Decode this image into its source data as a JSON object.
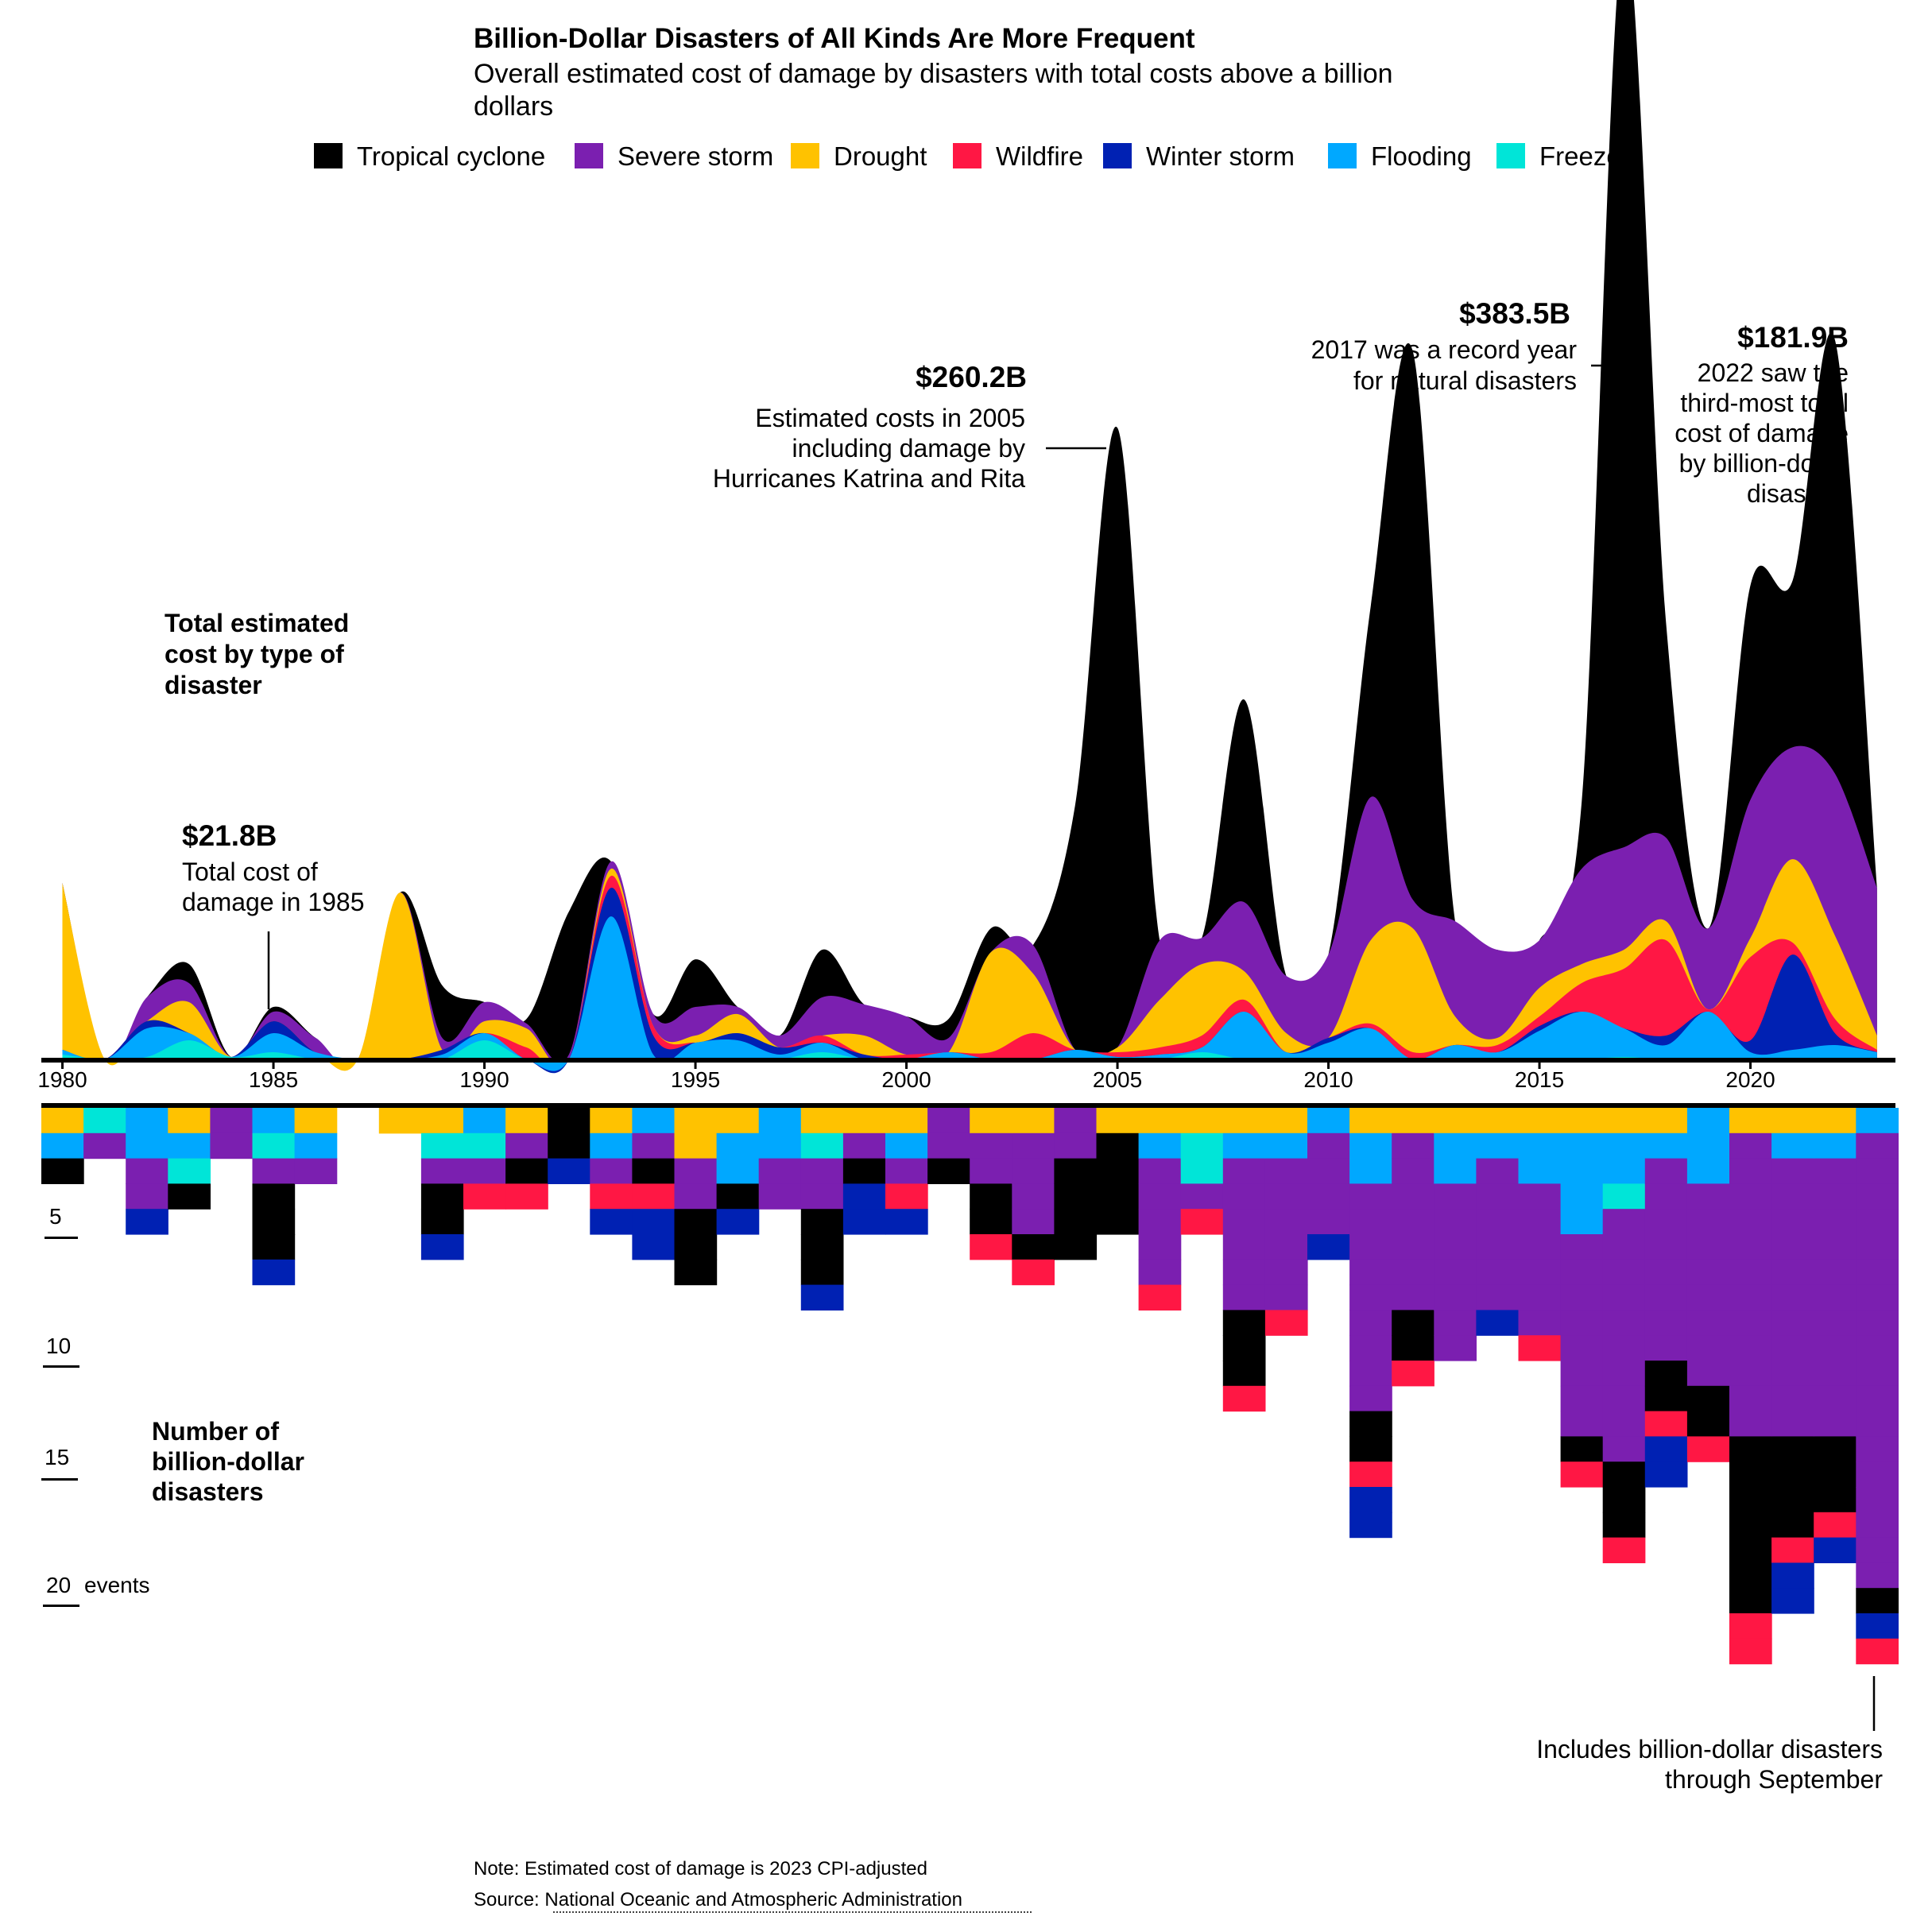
{
  "title": "Billion-Dollar Disasters of All Kinds Are More Frequent",
  "subtitle_line1": "Overall estimated cost of damage by disasters with total costs above a billion",
  "subtitle_line2": "dollars",
  "legend": [
    {
      "name": "Tropical cyclone",
      "color": "#000000"
    },
    {
      "name": "Severe storm",
      "color": "#7b1fb0"
    },
    {
      "name": "Drought",
      "color": "#ffc200"
    },
    {
      "name": "Wildfire",
      "color": "#ff1744"
    },
    {
      "name": "Winter storm",
      "color": "#0021b3"
    },
    {
      "name": "Flooding",
      "color": "#00a8ff"
    },
    {
      "name": "Freeze",
      "color": "#00e5d8"
    }
  ],
  "labels": {
    "cost_l1": "Total estimated",
    "cost_l2": "cost by type of",
    "cost_l3": "disaster",
    "count_l1": "Number of",
    "count_l2": "billion-dollar",
    "count_l3": "disasters"
  },
  "annotations": {
    "a1985_value": "$21.8B",
    "a1985_l1": "Total cost of",
    "a1985_l2": "damage in 1985",
    "a2005_value": "$260.2B",
    "a2005_l1": "Estimated costs in 2005",
    "a2005_l2": "including damage by",
    "a2005_l3": "Hurricanes Katrina and Rita",
    "a2017_value": "$383.5B",
    "a2017_l1": "2017 was a record year",
    "a2017_l2": "for natural disasters",
    "a2022_value": "$181.9B",
    "a2022_l1": "2022 saw the",
    "a2022_l2": "third-most total",
    "a2022_l3": "cost of damage",
    "a2022_l4": "by billion-dollar",
    "a2022_l5": "disasters",
    "a2023_l1": "Includes billion-dollar disasters",
    "a2023_l2": "through September"
  },
  "count_ticks": [
    "5",
    "10",
    "15",
    "20"
  ],
  "count_tick_unit": "events",
  "footer": {
    "note": "Note: Estimated cost of damage is 2023 CPI-adjusted",
    "source_prefix": "Source: ",
    "source_name": "National Oceanic and Atmospheric Administration"
  },
  "chart_data": [
    {
      "type": "area",
      "title": "Total estimated cost by type of disaster",
      "x": [
        1980,
        1981,
        1982,
        1983,
        1984,
        1985,
        1986,
        1987,
        1988,
        1989,
        1990,
        1991,
        1992,
        1993,
        1994,
        1995,
        1996,
        1997,
        1998,
        1999,
        2000,
        2001,
        2002,
        2003,
        2004,
        2005,
        2006,
        2007,
        2008,
        2009,
        2010,
        2011,
        2012,
        2013,
        2014,
        2015,
        2016,
        2017,
        2018,
        2019,
        2020,
        2021,
        2022,
        2023
      ],
      "x_ticks": [
        "1980",
        "1985",
        "1990",
        "1995",
        "2000",
        "2005",
        "2010",
        "2015",
        "2020"
      ],
      "unit": "billion dollars, 2023 CPI-adjusted",
      "series": [
        {
          "name": "Freeze",
          "values": [
            2,
            0,
            1,
            8,
            1,
            3,
            0,
            0,
            0,
            0,
            8,
            0,
            0,
            0,
            0,
            0,
            0,
            0,
            3,
            0,
            0,
            0,
            0,
            0,
            0,
            0,
            0,
            3,
            0,
            0,
            0,
            0,
            0,
            0,
            0,
            0,
            0,
            1,
            0,
            0,
            0,
            0,
            0,
            0
          ]
        },
        {
          "name": "Flooding",
          "values": [
            2,
            0,
            12,
            3,
            0,
            8,
            3,
            0,
            0,
            2,
            3,
            0,
            0,
            60,
            2,
            7,
            8,
            2,
            4,
            0,
            0,
            3,
            0,
            0,
            4,
            1,
            2,
            2,
            20,
            3,
            7,
            13,
            0,
            6,
            3,
            12,
            20,
            12,
            6,
            20,
            3,
            4,
            6,
            3
          ]
        },
        {
          "name": "Winter storm",
          "values": [
            0,
            0,
            3,
            0,
            0,
            5,
            0,
            0,
            0,
            2,
            0,
            0,
            0,
            12,
            8,
            0,
            3,
            3,
            0,
            2,
            0,
            0,
            0,
            0,
            0,
            0,
            0,
            0,
            0,
            0,
            2,
            0,
            0,
            0,
            0,
            2,
            0,
            0,
            4,
            0,
            5,
            40,
            5,
            0
          ]
        },
        {
          "name": "Wildfire",
          "values": [
            0,
            0,
            0,
            0,
            0,
            0,
            0,
            0,
            0,
            0,
            0,
            5,
            0,
            5,
            4,
            0,
            0,
            0,
            3,
            0,
            2,
            0,
            3,
            11,
            0,
            2,
            3,
            5,
            5,
            0,
            0,
            2,
            3,
            0,
            3,
            4,
            12,
            25,
            40,
            1,
            35,
            5,
            6,
            1
          ]
        },
        {
          "name": "Drought",
          "values": [
            70,
            0,
            0,
            13,
            0,
            0,
            0,
            0,
            70,
            0,
            5,
            8,
            0,
            3,
            0,
            3,
            8,
            0,
            0,
            8,
            0,
            0,
            42,
            25,
            0,
            2,
            20,
            30,
            12,
            8,
            0,
            35,
            52,
            12,
            3,
            12,
            8,
            8,
            8,
            0,
            8,
            35,
            35,
            6
          ]
        },
        {
          "name": "Severe storm",
          "values": [
            0,
            0,
            10,
            8,
            0,
            4,
            6,
            0,
            0,
            5,
            8,
            2,
            2,
            3,
            5,
            12,
            3,
            5,
            16,
            13,
            16,
            6,
            0,
            12,
            0,
            0,
            25,
            11,
            29,
            24,
            35,
            60,
            12,
            40,
            37,
            20,
            40,
            43,
            35,
            34,
            58,
            47,
            68,
            62
          ]
        },
        {
          "name": "Tropical cyclone",
          "values": [
            0,
            0,
            0,
            8,
            0,
            2,
            0,
            0,
            0,
            22,
            0,
            2,
            60,
            0,
            0,
            20,
            0,
            0,
            20,
            0,
            0,
            8,
            10,
            0,
            103,
            260,
            0,
            0,
            85,
            0,
            0,
            80,
            230,
            0,
            0,
            0,
            28,
            383,
            90,
            0,
            90,
            70,
            182,
            0
          ]
        }
      ],
      "annotations_billion": {
        "1985": 21.8,
        "2005": 260.2,
        "2017": 383.5,
        "2022": 181.9
      },
      "grid": false,
      "legend_position": "top"
    },
    {
      "type": "bar",
      "title": "Number of billion-dollar disasters",
      "x": [
        1980,
        1981,
        1982,
        1983,
        1984,
        1985,
        1986,
        1987,
        1988,
        1989,
        1990,
        1991,
        1992,
        1993,
        1994,
        1995,
        1996,
        1997,
        1998,
        1999,
        2000,
        2001,
        2002,
        2003,
        2004,
        2005,
        2006,
        2007,
        2008,
        2009,
        2010,
        2011,
        2012,
        2013,
        2014,
        2015,
        2016,
        2017,
        2018,
        2019,
        2020,
        2021,
        2022,
        2023
      ],
      "stack_order": "top-to-bottom; each entry is one disaster event",
      "events": [
        [
          "Drought",
          "Flooding",
          "Tropical cyclone"
        ],
        [
          "Freeze",
          "Severe storm"
        ],
        [
          "Flooding",
          "Flooding",
          "Severe storm",
          "Severe storm",
          "Winter storm"
        ],
        [
          "Drought",
          "Flooding",
          "Freeze",
          "Tropical cyclone"
        ],
        [
          "Severe storm",
          "Severe storm"
        ],
        [
          "Flooding",
          "Freeze",
          "Severe storm",
          "Tropical cyclone",
          "Tropical cyclone",
          "Tropical cyclone",
          "Winter storm"
        ],
        [
          "Drought",
          "Flooding",
          "Severe storm"
        ],
        [],
        [
          "Drought"
        ],
        [
          "Drought",
          "Freeze",
          "Severe storm",
          "Tropical cyclone",
          "Tropical cyclone",
          "Winter storm"
        ],
        [
          "Flooding",
          "Freeze",
          "Severe storm",
          "Wildfire"
        ],
        [
          "Drought",
          "Severe storm",
          "Tropical cyclone",
          "Wildfire"
        ],
        [
          "Tropical cyclone",
          "Tropical cyclone",
          "Winter storm"
        ],
        [
          "Drought",
          "Flooding",
          "Severe storm",
          "Wildfire",
          "Winter storm"
        ],
        [
          "Flooding",
          "Severe storm",
          "Tropical cyclone",
          "Wildfire",
          "Winter storm",
          "Winter storm"
        ],
        [
          "Drought",
          "Drought",
          "Severe storm",
          "Severe storm",
          "Tropical cyclone",
          "Tropical cyclone",
          "Tropical cyclone"
        ],
        [
          "Drought",
          "Flooding",
          "Flooding",
          "Tropical cyclone",
          "Winter storm"
        ],
        [
          "Flooding",
          "Flooding",
          "Severe storm",
          "Severe storm"
        ],
        [
          "Drought",
          "Freeze",
          "Severe storm",
          "Severe storm",
          "Tropical cyclone",
          "Tropical cyclone",
          "Tropical cyclone",
          "Winter storm"
        ],
        [
          "Drought",
          "Severe storm",
          "Tropical cyclone",
          "Winter storm",
          "Winter storm"
        ],
        [
          "Drought",
          "Flooding",
          "Severe storm",
          "Wildfire",
          "Winter storm"
        ],
        [
          "Severe storm",
          "Severe storm",
          "Tropical cyclone"
        ],
        [
          "Drought",
          "Severe storm",
          "Severe storm",
          "Tropical cyclone",
          "Tropical cyclone",
          "Wildfire"
        ],
        [
          "Drought",
          "Severe storm",
          "Severe storm",
          "Severe storm",
          "Severe storm",
          "Tropical cyclone",
          "Wildfire"
        ],
        [
          "Severe storm",
          "Severe storm",
          "Tropical cyclone",
          "Tropical cyclone",
          "Tropical cyclone",
          "Tropical cyclone"
        ],
        [
          "Drought",
          "Tropical cyclone",
          "Tropical cyclone",
          "Tropical cyclone",
          "Tropical cyclone"
        ],
        [
          "Drought",
          "Flooding",
          "Severe storm",
          "Severe storm",
          "Severe storm",
          "Severe storm",
          "Severe storm",
          "Wildfire"
        ],
        [
          "Drought",
          "Freeze",
          "Freeze",
          "Severe storm",
          "Wildfire"
        ],
        [
          "Drought",
          "Flooding",
          "Severe storm",
          "Severe storm",
          "Severe storm",
          "Severe storm",
          "Severe storm",
          "Severe storm",
          "Tropical cyclone",
          "Tropical cyclone",
          "Tropical cyclone",
          "Wildfire"
        ],
        [
          "Drought",
          "Flooding",
          "Severe storm",
          "Severe storm",
          "Severe storm",
          "Severe storm",
          "Severe storm",
          "Severe storm",
          "Wildfire"
        ],
        [
          "Flooding",
          "Severe storm",
          "Severe storm",
          "Severe storm",
          "Severe storm",
          "Winter storm"
        ],
        [
          "Drought",
          "Flooding",
          "Flooding",
          "Severe storm",
          "Severe storm",
          "Severe storm",
          "Severe storm",
          "Severe storm",
          "Severe storm",
          "Severe storm",
          "Severe storm",
          "Severe storm",
          "Tropical cyclone",
          "Tropical cyclone",
          "Wildfire",
          "Winter storm",
          "Winter storm"
        ],
        [
          "Drought",
          "Severe storm",
          "Severe storm",
          "Severe storm",
          "Severe storm",
          "Severe storm",
          "Severe storm",
          "Severe storm",
          "Tropical cyclone",
          "Tropical cyclone",
          "Wildfire"
        ],
        [
          "Drought",
          "Flooding",
          "Flooding",
          "Severe storm",
          "Severe storm",
          "Severe storm",
          "Severe storm",
          "Severe storm",
          "Severe storm",
          "Severe storm"
        ],
        [
          "Drought",
          "Flooding",
          "Severe storm",
          "Severe storm",
          "Severe storm",
          "Severe storm",
          "Severe storm",
          "Severe storm",
          "Winter storm"
        ],
        [
          "Drought",
          "Flooding",
          "Flooding",
          "Severe storm",
          "Severe storm",
          "Severe storm",
          "Severe storm",
          "Severe storm",
          "Severe storm",
          "Wildfire"
        ],
        [
          "Drought",
          "Flooding",
          "Flooding",
          "Flooding",
          "Flooding",
          "Severe storm",
          "Severe storm",
          "Severe storm",
          "Severe storm",
          "Severe storm",
          "Severe storm",
          "Severe storm",
          "Severe storm",
          "Tropical cyclone",
          "Wildfire"
        ],
        [
          "Drought",
          "Flooding",
          "Flooding",
          "Freeze",
          "Severe storm",
          "Severe storm",
          "Severe storm",
          "Severe storm",
          "Severe storm",
          "Severe storm",
          "Severe storm",
          "Severe storm",
          "Severe storm",
          "Severe storm",
          "Tropical cyclone",
          "Tropical cyclone",
          "Tropical cyclone",
          "Wildfire"
        ],
        [
          "Drought",
          "Flooding",
          "Severe storm",
          "Severe storm",
          "Severe storm",
          "Severe storm",
          "Severe storm",
          "Severe storm",
          "Severe storm",
          "Severe storm",
          "Tropical cyclone",
          "Tropical cyclone",
          "Wildfire",
          "Winter storm",
          "Winter storm"
        ],
        [
          "Flooding",
          "Flooding",
          "Flooding",
          "Severe storm",
          "Severe storm",
          "Severe storm",
          "Severe storm",
          "Severe storm",
          "Severe storm",
          "Severe storm",
          "Severe storm",
          "Tropical cyclone",
          "Tropical cyclone",
          "Wildfire"
        ],
        [
          "Drought",
          "Severe storm",
          "Severe storm",
          "Severe storm",
          "Severe storm",
          "Severe storm",
          "Severe storm",
          "Severe storm",
          "Severe storm",
          "Severe storm",
          "Severe storm",
          "Severe storm",
          "Severe storm",
          "Tropical cyclone",
          "Tropical cyclone",
          "Tropical cyclone",
          "Tropical cyclone",
          "Tropical cyclone",
          "Tropical cyclone",
          "Tropical cyclone",
          "Wildfire",
          "Wildfire"
        ],
        [
          "Drought",
          "Flooding",
          "Severe storm",
          "Severe storm",
          "Severe storm",
          "Severe storm",
          "Severe storm",
          "Severe storm",
          "Severe storm",
          "Severe storm",
          "Severe storm",
          "Severe storm",
          "Severe storm",
          "Tropical cyclone",
          "Tropical cyclone",
          "Tropical cyclone",
          "Tropical cyclone",
          "Wildfire",
          "Winter storm",
          "Winter storm"
        ],
        [
          "Drought",
          "Flooding",
          "Severe storm",
          "Severe storm",
          "Severe storm",
          "Severe storm",
          "Severe storm",
          "Severe storm",
          "Severe storm",
          "Severe storm",
          "Severe storm",
          "Severe storm",
          "Severe storm",
          "Tropical cyclone",
          "Tropical cyclone",
          "Tropical cyclone",
          "Wildfire",
          "Winter storm"
        ],
        [
          "Flooding",
          "Severe storm",
          "Severe storm",
          "Severe storm",
          "Severe storm",
          "Severe storm",
          "Severe storm",
          "Severe storm",
          "Severe storm",
          "Severe storm",
          "Severe storm",
          "Severe storm",
          "Severe storm",
          "Severe storm",
          "Severe storm",
          "Severe storm",
          "Severe storm",
          "Severe storm",
          "Severe storm",
          "Tropical cyclone",
          "Winter storm",
          "Wildfire"
        ]
      ],
      "ylim": [
        0,
        22
      ],
      "y_ticks": [
        5,
        10,
        15,
        20
      ],
      "grid": false
    }
  ]
}
